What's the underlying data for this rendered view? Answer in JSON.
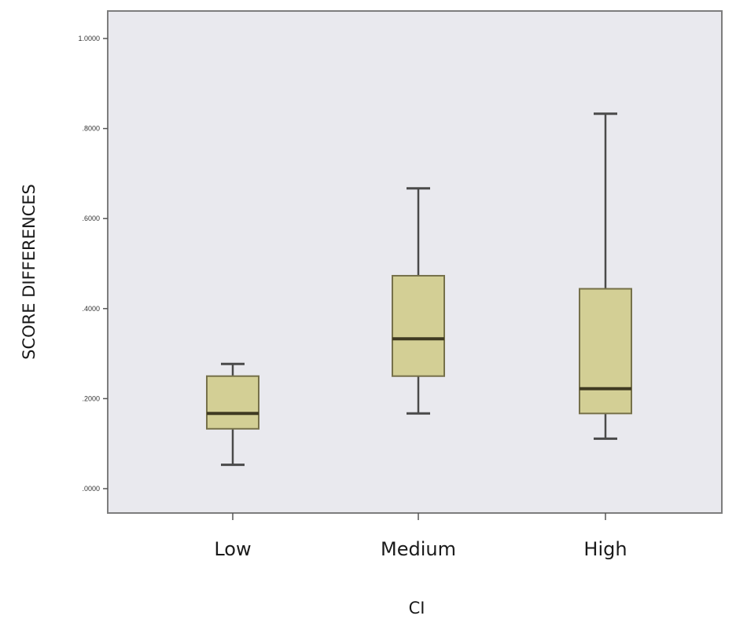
{
  "chart_data": {
    "type": "boxplot",
    "xlabel": "CI",
    "ylabel": "SCORE DIFFERENCES",
    "ylim": [
      -0.05,
      1.08
    ],
    "yticks": [
      0.0,
      0.2,
      0.4,
      0.6,
      0.8,
      1.0
    ],
    "ytick_labels": [
      ".0000",
      ".2000",
      ".4000",
      ".6000",
      ".8000",
      "1.0000"
    ],
    "grid": false,
    "categories": [
      "Low",
      "Medium",
      "High"
    ],
    "boxes": [
      {
        "category": "Low",
        "min": 0.053,
        "q1": 0.133,
        "median": 0.167,
        "q3": 0.25,
        "max": 0.277
      },
      {
        "category": "Medium",
        "min": 0.167,
        "q1": 0.25,
        "median": 0.333,
        "q3": 0.473,
        "max": 0.667
      },
      {
        "category": "High",
        "min": 0.111,
        "q1": 0.167,
        "median": 0.222,
        "q3": 0.444,
        "max": 0.833
      }
    ],
    "colors": {
      "plot_background": "#e9e9ee",
      "plot_border": "#7d7d7d",
      "box_fill": "#d3cf95",
      "box_stroke": "#76714a",
      "median": "#3f3a22",
      "whisker": "#4a4a4a"
    }
  }
}
